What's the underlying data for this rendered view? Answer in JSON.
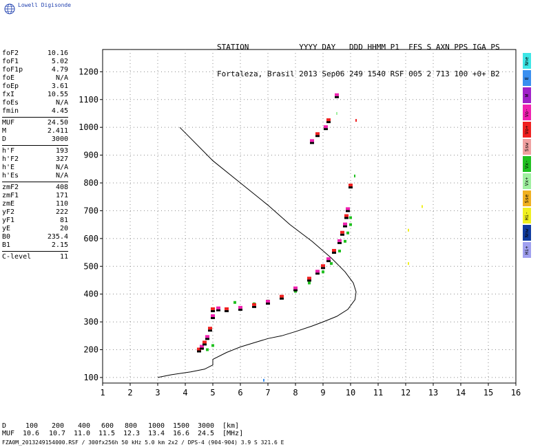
{
  "logo": {
    "text": "Lowell Digisonde"
  },
  "header": {
    "line1": "STATION           YYYY DAY   DDD HHMM P1  FFS S AXN PPS IGA PS",
    "line2": "Fortaleza, Brasil 2013 Sep06 249 1540 RSF 005 2 713 100 +0+ B2"
  },
  "params": {
    "group1": [
      {
        "label": "foF2",
        "value": "10.16"
      },
      {
        "label": "foF1",
        "value": "5.02"
      },
      {
        "label": "foF1p",
        "value": "4.79"
      },
      {
        "label": "foE",
        "value": "N/A"
      },
      {
        "label": "foEp",
        "value": "3.61"
      },
      {
        "label": "fxI",
        "value": "10.55"
      },
      {
        "label": "foEs",
        "value": "N/A"
      },
      {
        "label": "fmin",
        "value": "4.45"
      }
    ],
    "group2": [
      {
        "label": "MUF",
        "value": "24.50"
      },
      {
        "label": "M",
        "value": "2.411"
      },
      {
        "label": "D",
        "value": "3000"
      }
    ],
    "group3": [
      {
        "label": "h'F",
        "value": "193"
      },
      {
        "label": "h'F2",
        "value": "327"
      },
      {
        "label": "h'E",
        "value": "N/A"
      },
      {
        "label": "h'Es",
        "value": "N/A"
      }
    ],
    "group4": [
      {
        "label": "zmF2",
        "value": "408"
      },
      {
        "label": "zmF1",
        "value": "171"
      },
      {
        "label": "zmE",
        "value": "110"
      },
      {
        "label": "yF2",
        "value": "222"
      },
      {
        "label": "yF1",
        "value": "81"
      },
      {
        "label": "yE",
        "value": "20"
      },
      {
        "label": "B0",
        "value": "235.4"
      },
      {
        "label": "B1",
        "value": "2.15"
      }
    ],
    "group5": [
      {
        "label": "C-level",
        "value": "11"
      }
    ]
  },
  "legend": [
    {
      "label": "Nne",
      "color": "#3ee6e6"
    },
    {
      "label": "E",
      "color": "#3a8ff0"
    },
    {
      "label": "W",
      "color": "#a020c8"
    },
    {
      "label": "Vo-",
      "color": "#f020b0"
    },
    {
      "label": "Vo+",
      "color": "#f02020"
    },
    {
      "label": "Ssw",
      "color": "#f0a0a0"
    },
    {
      "label": "Vx-",
      "color": "#20c020"
    },
    {
      "label": "Vx+",
      "color": "#a0f0a0"
    },
    {
      "label": "Sse",
      "color": "#f0b020"
    },
    {
      "label": "Hi-",
      "color": "#f0f020"
    },
    {
      "label": "Nnw",
      "color": "#103ca0"
    },
    {
      "label": "Hi+",
      "color": "#a0a0f0"
    }
  ],
  "muf_table": {
    "d_label": "D",
    "d_values": [
      "100",
      "200",
      "400",
      "600",
      "800",
      "1000",
      "1500",
      "3000"
    ],
    "d_unit": "[km]",
    "muf_label": "MUF",
    "muf_values": [
      "10.6",
      "10.7",
      "11.0",
      "11.5",
      "12.3",
      "13.4",
      "16.6",
      "24.5"
    ],
    "muf_unit": "[MHz]"
  },
  "footer": "FZA0M_2013249154000.RSF / 300fx256h 50 kHz 5.0 km 2x2 / DPS-4 (904-904)  3.9 S 321.6 E",
  "chart_data": {
    "type": "scatter",
    "xlim": [
      1,
      16
    ],
    "ylim": [
      80,
      1280
    ],
    "xticks": [
      1,
      2,
      3,
      4,
      5,
      6,
      7,
      8,
      9,
      10,
      11,
      12,
      13,
      14,
      15,
      16
    ],
    "yticks": [
      100,
      200,
      300,
      400,
      500,
      600,
      700,
      800,
      900,
      1000,
      1100,
      1200
    ],
    "grid": "dotted",
    "profile_line": [
      [
        3.0,
        100
      ],
      [
        3.5,
        110
      ],
      [
        4.2,
        120
      ],
      [
        4.7,
        130
      ],
      [
        5.0,
        145
      ],
      [
        5.0,
        165
      ],
      [
        5.5,
        190
      ],
      [
        6.0,
        210
      ],
      [
        6.5,
        225
      ],
      [
        7.0,
        240
      ],
      [
        7.5,
        250
      ],
      [
        8.0,
        265
      ],
      [
        8.6,
        285
      ],
      [
        9.0,
        300
      ],
      [
        9.5,
        320
      ],
      [
        9.9,
        345
      ],
      [
        10.16,
        380
      ],
      [
        10.2,
        408
      ],
      [
        10.1,
        440
      ],
      [
        9.8,
        480
      ],
      [
        9.3,
        530
      ],
      [
        8.6,
        590
      ],
      [
        7.8,
        650
      ],
      [
        7.0,
        720
      ],
      [
        6.0,
        800
      ],
      [
        5.0,
        880
      ],
      [
        4.2,
        960
      ],
      [
        3.8,
        1000
      ]
    ],
    "trace_o": [
      [
        4.5,
        200
      ],
      [
        4.6,
        210
      ],
      [
        4.7,
        225
      ],
      [
        4.8,
        245
      ],
      [
        4.9,
        275
      ],
      [
        5.0,
        320
      ],
      [
        5.0,
        345
      ],
      [
        5.2,
        348
      ],
      [
        5.5,
        345
      ],
      [
        6.0,
        350
      ],
      [
        6.5,
        360
      ],
      [
        7.0,
        372
      ],
      [
        7.5,
        390
      ],
      [
        8.0,
        420
      ],
      [
        8.5,
        455
      ],
      [
        8.8,
        480
      ],
      [
        9.0,
        500
      ],
      [
        9.2,
        525
      ],
      [
        9.4,
        555
      ],
      [
        9.6,
        590
      ],
      [
        9.7,
        620
      ],
      [
        9.8,
        650
      ],
      [
        9.85,
        680
      ],
      [
        9.9,
        705
      ],
      [
        10.0,
        790
      ],
      [
        8.6,
        950
      ],
      [
        8.8,
        975
      ],
      [
        9.1,
        1000
      ],
      [
        9.2,
        1025
      ],
      [
        9.5,
        1115
      ]
    ],
    "trace_x": [
      [
        4.8,
        200
      ],
      [
        5.0,
        215
      ],
      [
        5.8,
        370
      ],
      [
        6.5,
        365
      ],
      [
        7.0,
        375
      ],
      [
        7.5,
        390
      ],
      [
        8.0,
        410
      ],
      [
        8.5,
        440
      ],
      [
        9.0,
        480
      ],
      [
        9.3,
        510
      ],
      [
        9.6,
        555
      ],
      [
        9.8,
        590
      ],
      [
        9.9,
        620
      ],
      [
        10.0,
        650
      ],
      [
        10.0,
        675
      ]
    ],
    "scatter_misc": [
      {
        "x": 6.85,
        "y": 90,
        "color": "#3a8ff0"
      },
      {
        "x": 12.1,
        "y": 510,
        "color": "#f0f020"
      },
      {
        "x": 12.1,
        "y": 630,
        "color": "#f0f020"
      },
      {
        "x": 12.6,
        "y": 715,
        "color": "#f0f020"
      },
      {
        "x": 10.15,
        "y": 825,
        "color": "#20c020"
      },
      {
        "x": 10.2,
        "y": 1025,
        "color": "#f02020"
      },
      {
        "x": 9.5,
        "y": 1050,
        "color": "#a0f0a0"
      }
    ]
  }
}
